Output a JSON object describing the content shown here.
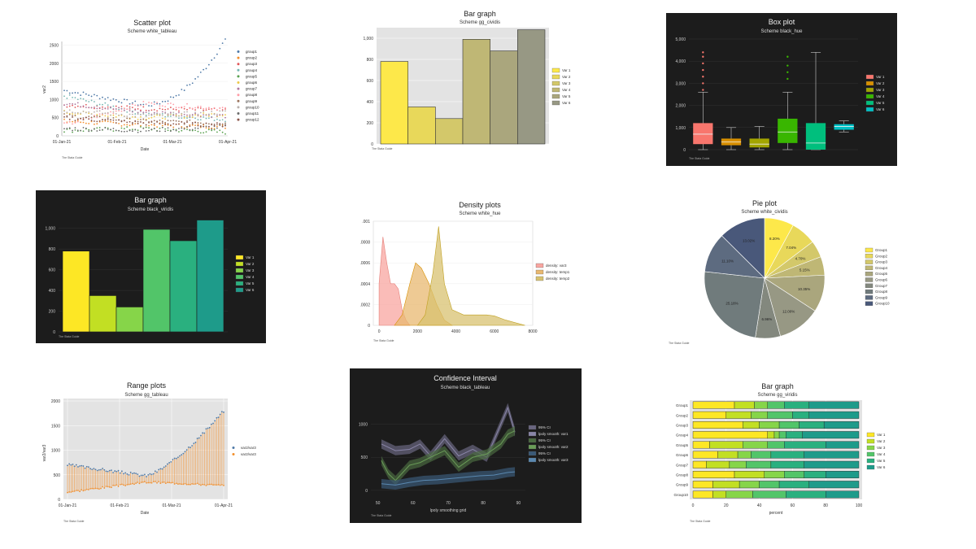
{
  "colors": {
    "dark_bg": "#1c1c1c",
    "plot_gray": "#e3e3e3",
    "cividis": [
      "#fde84a",
      "#e8d85a",
      "#d3c86a",
      "#bfb775",
      "#aaa67d",
      "#979884",
      "#83887e",
      "#707b7c",
      "#5d6b80",
      "#49587a"
    ],
    "viridis6": [
      "#fde725",
      "#c2df23",
      "#86d549",
      "#52c569",
      "#2ab07f",
      "#1e9b8a"
    ],
    "hue6": [
      "#f8766d",
      "#d89000",
      "#a3a500",
      "#39b600",
      "#00bf7d",
      "#00bfc4"
    ],
    "tableau": [
      "#4e79a7",
      "#f28e2b",
      "#e15759",
      "#76b7b2",
      "#59a14f",
      "#edc948",
      "#b07aa1",
      "#ff9da7",
      "#9c755f",
      "#bab0ac",
      "#6b6b6b",
      "#8c564b"
    ]
  },
  "chart_data": [
    {
      "type": "scatter",
      "title": "Scatter plot",
      "subtitle": "Scheme white_tableau",
      "xlabel": "Date",
      "ylabel": "var2",
      "xticks": [
        "01-Jan-21",
        "01-Feb-21",
        "01-Mar-21",
        "01-Apr-21"
      ],
      "yticks": [
        "0",
        "500",
        "1000",
        "1500",
        "2000",
        "2500"
      ],
      "ylim": [
        0,
        2600
      ],
      "legend_position": "right",
      "series_names": [
        "group1",
        "group2",
        "group3",
        "group4",
        "group5",
        "group6",
        "group7",
        "group8",
        "group9",
        "group10",
        "group11",
        "group12"
      ],
      "series_levels": [
        {
          "name": "group1",
          "start": 1250,
          "mid": 850,
          "end": 2650
        },
        {
          "name": "group2",
          "start": 400,
          "mid": 300,
          "end": 250
        },
        {
          "name": "group3",
          "start": 850,
          "mid": 750,
          "end": 700
        },
        {
          "name": "group4",
          "start": 1100,
          "mid": 600,
          "end": 450
        },
        {
          "name": "group5",
          "start": 150,
          "mid": 200,
          "end": 100
        },
        {
          "name": "group6",
          "start": 650,
          "mid": 500,
          "end": 600
        },
        {
          "name": "group7",
          "start": 900,
          "mid": 650,
          "end": 550
        },
        {
          "name": "group8",
          "start": 300,
          "mid": 900,
          "end": 750
        },
        {
          "name": "group9",
          "start": 550,
          "mid": 400,
          "end": 350
        },
        {
          "name": "group10",
          "start": 700,
          "mid": 550,
          "end": 650
        },
        {
          "name": "group11",
          "start": 200,
          "mid": 150,
          "end": 250
        },
        {
          "name": "group12",
          "start": 500,
          "mid": 350,
          "end": 300
        }
      ],
      "footnote": "The Stata Guide"
    },
    {
      "type": "bar",
      "title": "Bar graph",
      "subtitle": "Scheme gg_cividis",
      "categories": [
        "Var 1",
        "Var 2",
        "Var 3",
        "Var 4",
        "Var 5",
        "Var 6"
      ],
      "values": [
        780,
        350,
        240,
        990,
        880,
        1080
      ],
      "yticks": [
        "0",
        "200",
        "400",
        "600",
        "800",
        "1,000"
      ],
      "ylim": [
        0,
        1100
      ],
      "legend_position": "right",
      "footnote": "The Stata Guide"
    },
    {
      "type": "box",
      "title": "Box plot",
      "subtitle": "Scheme black_hue",
      "categories": [
        "Var 1",
        "Var 2",
        "Var 3",
        "Var 4",
        "Var 5",
        "Var 6"
      ],
      "boxes": [
        {
          "q1": 250,
          "med": 700,
          "q3": 1200,
          "lo": 0,
          "hi": 2600,
          "out": [
            2700,
            3000,
            3300,
            3600,
            3900,
            4200,
            4400
          ]
        },
        {
          "q1": 200,
          "med": 350,
          "q3": 500,
          "lo": 0,
          "hi": 1000,
          "out": []
        },
        {
          "q1": 100,
          "med": 250,
          "q3": 500,
          "lo": 0,
          "hi": 1050,
          "out": []
        },
        {
          "q1": 300,
          "med": 800,
          "q3": 1400,
          "lo": 0,
          "hi": 2600,
          "out": [
            3200,
            3500,
            3800,
            4200
          ]
        },
        {
          "q1": 0,
          "med": 300,
          "q3": 1200,
          "lo": 0,
          "hi": 4400,
          "out": []
        },
        {
          "q1": 900,
          "med": 1050,
          "q3": 1150,
          "lo": 800,
          "hi": 1300,
          "out": []
        }
      ],
      "yticks": [
        "0",
        "1,000",
        "2,000",
        "3,000",
        "4,000",
        "5,000"
      ],
      "ylim": [
        0,
        5000
      ],
      "legend_position": "right",
      "footnote": "The Stata Guide"
    },
    {
      "type": "bar",
      "title": "Bar graph",
      "subtitle": "Scheme black_viridis",
      "categories": [
        "Var 1",
        "Var 2",
        "Var 3",
        "Var 4",
        "Var 5",
        "Var 6"
      ],
      "values": [
        780,
        350,
        240,
        990,
        880,
        1080
      ],
      "yticks": [
        "0",
        "200",
        "400",
        "600",
        "800",
        "1,000"
      ],
      "ylim": [
        0,
        1100
      ],
      "legend_position": "right",
      "footnote": "The Stata Guide"
    },
    {
      "type": "area",
      "title": "Density plots",
      "subtitle": "Scheme white_hue",
      "series": [
        {
          "name": "density: var3",
          "x": [
            0,
            200,
            400,
            600,
            800,
            1000,
            1200,
            1400,
            1600
          ],
          "y": [
            0.0004,
            0.00085,
            0.0006,
            0.0004,
            0.0004,
            0.00035,
            0.00015,
            5e-05,
            0
          ]
        },
        {
          "name": "density: temp1",
          "x": [
            800,
            1200,
            1600,
            1900,
            2200,
            2600,
            3000,
            3400,
            3800
          ],
          "y": [
            0,
            0.0001,
            0.0004,
            0.0006,
            0.00055,
            0.0004,
            0.0002,
            5e-05,
            0
          ]
        },
        {
          "name": "density: temp2",
          "x": [
            2000,
            2400,
            2800,
            3100,
            3400,
            3800,
            4400,
            5000,
            5600,
            6000,
            6600,
            7200,
            7600
          ],
          "y": [
            0,
            0.0001,
            0.0005,
            0.00095,
            0.0004,
            0.00015,
            0.0001,
            0.0001,
            0.0001,
            9e-05,
            5e-05,
            2e-05,
            0
          ]
        }
      ],
      "xticks": [
        "0",
        "2000",
        "4000",
        "6000",
        "8000"
      ],
      "yticks": [
        "0",
        "0.0002",
        "0.0004",
        "0.0006",
        "0.0008",
        ".001"
      ],
      "xlim": [
        -300,
        8000
      ],
      "ylim": [
        0,
        0.001
      ],
      "legend_position": "right",
      "footnote": "The Stata Guide"
    },
    {
      "type": "pie",
      "title": "Pie plot",
      "subtitle": "Scheme white_cividis",
      "categories": [
        "Group1",
        "Group2",
        "Group3",
        "Group4",
        "Group5",
        "Group6",
        "Group7",
        "Group8",
        "Group9",
        "Group10"
      ],
      "values": [
        8.2,
        7.04,
        4.7,
        5.15,
        10.35,
        12.0,
        6.96,
        25.18,
        11.1,
        13.02
      ],
      "slice_labels": [
        "8.20%",
        "7.04%",
        "4.70%",
        "5.15%",
        "10.35%",
        "12.00%",
        "6.96%",
        "25.18%",
        "11.10%",
        "13.02%"
      ],
      "legend_position": "right",
      "footnote": "The Stata Guide"
    },
    {
      "type": "bar",
      "title": "Range plots",
      "subtitle": "Scheme gg_tableau",
      "xlabel": "Date",
      "ylabel": "var2/var3",
      "xticks": [
        "01-Jan-21",
        "01-Feb-21",
        "01-Mar-21",
        "01-Apr-21"
      ],
      "yticks": [
        "0",
        "500",
        "1000",
        "1500",
        "2000"
      ],
      "ylim": [
        0,
        2050
      ],
      "series": [
        {
          "name": "var2/var3",
          "start": 700,
          "mid": 480,
          "end": 1800
        },
        {
          "name": "var2/var3",
          "start": 150,
          "mid": 350,
          "end": 280
        }
      ],
      "legend_position": "right",
      "footnote": "The Stata Guide"
    },
    {
      "type": "line",
      "title": "Confidence Interval",
      "subtitle": "Scheme black_tableau",
      "xlabel": "lpoly smoothing grid",
      "xticks": [
        "50",
        "60",
        "70",
        "80",
        "90"
      ],
      "yticks": [
        "0",
        "500",
        "1000"
      ],
      "xlim": [
        48,
        92
      ],
      "ylim": [
        -100,
        1450
      ],
      "series": [
        {
          "name": "lpoly smooth: var1",
          "x": [
            51,
            55,
            59,
            62,
            65,
            69,
            73,
            77,
            81,
            85,
            87,
            89
          ],
          "y": [
            700,
            600,
            620,
            700,
            520,
            780,
            520,
            620,
            500,
            1000,
            1250,
            880
          ]
        },
        {
          "name": "lpoly smooth: var2",
          "x": [
            51,
            53,
            55,
            59,
            62,
            65,
            69,
            73,
            77,
            81,
            85,
            87,
            89
          ],
          "y": [
            450,
            250,
            150,
            380,
            420,
            500,
            600,
            350,
            500,
            550,
            700,
            850,
            900
          ]
        },
        {
          "name": "lpoly smooth: var3",
          "x": [
            51,
            55,
            59,
            63,
            67,
            71,
            75,
            79,
            83,
            87,
            89
          ],
          "y": [
            100,
            80,
            120,
            150,
            160,
            180,
            200,
            220,
            230,
            270,
            280
          ]
        }
      ],
      "legend": [
        "95% CI",
        "lpoly smooth: var1",
        "95% CI",
        "lpoly smooth: var2",
        "95% CI",
        "lpoly smooth: var3"
      ],
      "legend_position": "right",
      "footnote": "The Stata Guide"
    },
    {
      "type": "bar",
      "title": "Bar graph",
      "subtitle": "Scheme gg_viridis",
      "xlabel": "percent",
      "categories": [
        "Group1",
        "Group2",
        "Group3",
        "Group4",
        "Group5",
        "Group6",
        "Group7",
        "Group8",
        "Group9",
        "Group10"
      ],
      "series": [
        {
          "name": "Var 1",
          "values": [
            25,
            20,
            30,
            45,
            10,
            15,
            8,
            25,
            12,
            12
          ]
        },
        {
          "name": "Var 2",
          "values": [
            12,
            15,
            10,
            4,
            20,
            12,
            14,
            18,
            16,
            8
          ]
        },
        {
          "name": "Var 3",
          "values": [
            8,
            10,
            12,
            3,
            15,
            8,
            10,
            12,
            12,
            16
          ]
        },
        {
          "name": "Var 4",
          "values": [
            10,
            15,
            12,
            4,
            10,
            12,
            15,
            12,
            12,
            20
          ]
        },
        {
          "name": "Var 5",
          "values": [
            15,
            10,
            15,
            10,
            25,
            20,
            20,
            13,
            18,
            24
          ]
        },
        {
          "name": "Var 6",
          "values": [
            30,
            30,
            21,
            34,
            20,
            33,
            33,
            20,
            30,
            20
          ]
        }
      ],
      "xticks": [
        "0",
        "20",
        "40",
        "60",
        "80",
        "100"
      ],
      "xlim": [
        0,
        100
      ],
      "legend_position": "right",
      "footnote": "The Stata Guide"
    }
  ]
}
